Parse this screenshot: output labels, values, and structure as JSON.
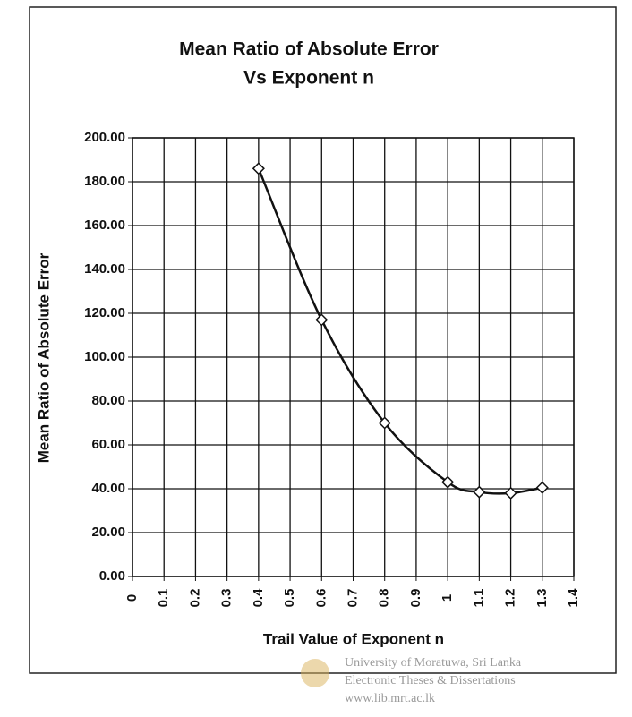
{
  "chart_data": {
    "type": "line",
    "title": "Mean Ratio of Absolute Error",
    "subtitle": "Vs  Exponent n",
    "x_label": "Trail Value of Exponent n",
    "y_label": "Mean Ratio of Absolute Error",
    "x": [
      0.4,
      0.6,
      0.8,
      1.0,
      1.1,
      1.2,
      1.3
    ],
    "series": [
      {
        "name": "Mean Ratio of Absolute Error",
        "color": "#111111",
        "values": [
          186,
          117,
          70,
          43,
          38.5,
          38,
          40.5
        ]
      }
    ],
    "xlim": [
      0,
      1.4
    ],
    "xticks": [
      0,
      0.1,
      0.2,
      0.3,
      0.4,
      0.5,
      0.6,
      0.7,
      0.8,
      0.9,
      1,
      1.1,
      1.2,
      1.3,
      1.4
    ],
    "ylim": [
      0,
      200
    ],
    "yticks": [
      {
        "value": 0,
        "label": "0.00"
      },
      {
        "value": 20,
        "label": "20.00"
      },
      {
        "value": 40,
        "label": "40.00"
      },
      {
        "value": 60,
        "label": "60.00"
      },
      {
        "value": 80,
        "label": "80.00"
      },
      {
        "value": 100,
        "label": "100.00"
      },
      {
        "value": 120,
        "label": "120.00"
      },
      {
        "value": 140,
        "label": "140.00"
      },
      {
        "value": 160,
        "label": "160.00"
      },
      {
        "value": 180,
        "label": "180.00"
      },
      {
        "value": 200,
        "label": "200.00"
      }
    ],
    "grid": true,
    "annotations": [
      "University of Moratuwa, Sri Lanka",
      "Electronic Theses & Dissertations",
      "www.lib.mrt.ac.lk"
    ]
  }
}
